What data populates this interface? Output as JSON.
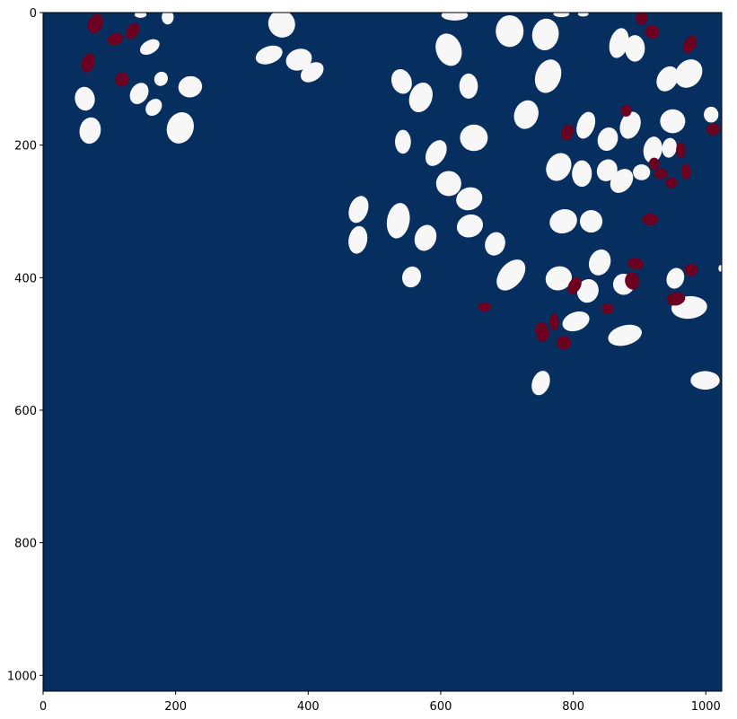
{
  "chart_data": {
    "type": "heatmap",
    "title": "",
    "xlabel": "",
    "ylabel": "",
    "xlim": [
      0,
      1024
    ],
    "ylim": [
      1024,
      0
    ],
    "x_ticks": [
      0,
      200,
      400,
      600,
      800,
      1000
    ],
    "y_ticks": [
      0,
      200,
      400,
      600,
      800,
      1000
    ],
    "x_tick_labels": [
      "0",
      "200",
      "400",
      "600",
      "800",
      "1000"
    ],
    "y_tick_labels": [
      "0",
      "200",
      "400",
      "600",
      "800",
      "1000"
    ],
    "grid": false,
    "legend": "none",
    "classes": [
      {
        "value": 0,
        "color": "#062e5f"
      },
      {
        "value": 1,
        "color": "#f7f7f7"
      },
      {
        "value": 2,
        "color": "#6b0020"
      }
    ],
    "regions": [
      {
        "class": 1,
        "cx": 147,
        "cy": 3,
        "rx": 9,
        "ry": 5,
        "angle": 0
      },
      {
        "class": 1,
        "cx": 188,
        "cy": 7,
        "rx": 9,
        "ry": 11,
        "angle": 0
      },
      {
        "class": 1,
        "cx": 360,
        "cy": 17,
        "rx": 20,
        "ry": 21,
        "angle": -30
      },
      {
        "class": 1,
        "cx": 621,
        "cy": 4,
        "rx": 20,
        "ry": 8,
        "angle": 0
      },
      {
        "class": 1,
        "cx": 782,
        "cy": 2,
        "rx": 12,
        "ry": 5,
        "angle": 0
      },
      {
        "class": 1,
        "cx": 815,
        "cy": 2,
        "rx": 8,
        "ry": 4,
        "angle": 0
      },
      {
        "class": 1,
        "cx": 161,
        "cy": 52,
        "rx": 16,
        "ry": 10,
        "angle": -30
      },
      {
        "class": 1,
        "cx": 341,
        "cy": 64,
        "rx": 21,
        "ry": 13,
        "angle": -20
      },
      {
        "class": 1,
        "cx": 386,
        "cy": 71,
        "rx": 20,
        "ry": 16,
        "angle": -20
      },
      {
        "class": 1,
        "cx": 406,
        "cy": 90,
        "rx": 19,
        "ry": 13,
        "angle": -35
      },
      {
        "class": 1,
        "cx": 612,
        "cy": 56,
        "rx": 19,
        "ry": 25,
        "angle": -20
      },
      {
        "class": 1,
        "cx": 704,
        "cy": 28,
        "rx": 21,
        "ry": 24,
        "angle": 0
      },
      {
        "class": 1,
        "cx": 758,
        "cy": 33,
        "rx": 20,
        "ry": 24,
        "angle": 10
      },
      {
        "class": 1,
        "cx": 869,
        "cy": 46,
        "rx": 14,
        "ry": 23,
        "angle": 15
      },
      {
        "class": 1,
        "cx": 893,
        "cy": 54,
        "rx": 15,
        "ry": 20,
        "angle": 0
      },
      {
        "class": 1,
        "cx": 63,
        "cy": 130,
        "rx": 15,
        "ry": 18,
        "angle": -10
      },
      {
        "class": 1,
        "cx": 145,
        "cy": 122,
        "rx": 13,
        "ry": 17,
        "angle": 30
      },
      {
        "class": 1,
        "cx": 167,
        "cy": 143,
        "rx": 11,
        "ry": 14,
        "angle": 40
      },
      {
        "class": 1,
        "cx": 178,
        "cy": 100,
        "rx": 10,
        "ry": 11,
        "angle": 30
      },
      {
        "class": 1,
        "cx": 222,
        "cy": 112,
        "rx": 18,
        "ry": 16,
        "angle": -10
      },
      {
        "class": 1,
        "cx": 71,
        "cy": 178,
        "rx": 16,
        "ry": 20,
        "angle": 10
      },
      {
        "class": 1,
        "cx": 207,
        "cy": 174,
        "rx": 20,
        "ry": 24,
        "angle": 20
      },
      {
        "class": 1,
        "cx": 541,
        "cy": 104,
        "rx": 15,
        "ry": 19,
        "angle": -20
      },
      {
        "class": 1,
        "cx": 570,
        "cy": 128,
        "rx": 17,
        "ry": 23,
        "angle": 20
      },
      {
        "class": 1,
        "cx": 642,
        "cy": 111,
        "rx": 14,
        "ry": 19,
        "angle": 0
      },
      {
        "class": 1,
        "cx": 762,
        "cy": 96,
        "rx": 19,
        "ry": 26,
        "angle": 20
      },
      {
        "class": 1,
        "cx": 942,
        "cy": 100,
        "rx": 15,
        "ry": 20,
        "angle": 30
      },
      {
        "class": 1,
        "cx": 974,
        "cy": 92,
        "rx": 19,
        "ry": 23,
        "angle": 40
      },
      {
        "class": 1,
        "cx": 729,
        "cy": 154,
        "rx": 18,
        "ry": 22,
        "angle": 20
      },
      {
        "class": 1,
        "cx": 819,
        "cy": 170,
        "rx": 13,
        "ry": 21,
        "angle": 20
      },
      {
        "class": 1,
        "cx": 886,
        "cy": 170,
        "rx": 15,
        "ry": 21,
        "angle": 20
      },
      {
        "class": 1,
        "cx": 950,
        "cy": 164,
        "rx": 19,
        "ry": 18,
        "angle": 0
      },
      {
        "class": 1,
        "cx": 1008,
        "cy": 154,
        "rx": 11,
        "ry": 12,
        "angle": 0
      },
      {
        "class": 1,
        "cx": 543,
        "cy": 195,
        "rx": 12,
        "ry": 18,
        "angle": 0
      },
      {
        "class": 1,
        "cx": 593,
        "cy": 212,
        "rx": 14,
        "ry": 21,
        "angle": 30
      },
      {
        "class": 1,
        "cx": 650,
        "cy": 189,
        "rx": 21,
        "ry": 20,
        "angle": 0
      },
      {
        "class": 1,
        "cx": 852,
        "cy": 191,
        "rx": 15,
        "ry": 18,
        "angle": 20
      },
      {
        "class": 1,
        "cx": 920,
        "cy": 207,
        "rx": 14,
        "ry": 20,
        "angle": 10
      },
      {
        "class": 1,
        "cx": 945,
        "cy": 204,
        "rx": 11,
        "ry": 15,
        "angle": 10
      },
      {
        "class": 1,
        "cx": 778,
        "cy": 233,
        "rx": 18,
        "ry": 22,
        "angle": 30
      },
      {
        "class": 1,
        "cx": 813,
        "cy": 243,
        "rx": 15,
        "ry": 20,
        "angle": 0
      },
      {
        "class": 1,
        "cx": 851,
        "cy": 238,
        "rx": 15,
        "ry": 17,
        "angle": 30
      },
      {
        "class": 1,
        "cx": 873,
        "cy": 254,
        "rx": 15,
        "ry": 20,
        "angle": 40
      },
      {
        "class": 1,
        "cx": 903,
        "cy": 241,
        "rx": 13,
        "ry": 12,
        "angle": 0
      },
      {
        "class": 1,
        "cx": 612,
        "cy": 258,
        "rx": 19,
        "ry": 19,
        "angle": 0
      },
      {
        "class": 1,
        "cx": 643,
        "cy": 281,
        "rx": 20,
        "ry": 17,
        "angle": -20
      },
      {
        "class": 1,
        "cx": 476,
        "cy": 297,
        "rx": 14,
        "ry": 21,
        "angle": 20
      },
      {
        "class": 1,
        "cx": 536,
        "cy": 314,
        "rx": 17,
        "ry": 27,
        "angle": 10
      },
      {
        "class": 1,
        "cx": 644,
        "cy": 322,
        "rx": 20,
        "ry": 17,
        "angle": -20
      },
      {
        "class": 1,
        "cx": 785,
        "cy": 315,
        "rx": 21,
        "ry": 18,
        "angle": -20
      },
      {
        "class": 1,
        "cx": 827,
        "cy": 315,
        "rx": 17,
        "ry": 17,
        "angle": 0
      },
      {
        "class": 1,
        "cx": 475,
        "cy": 343,
        "rx": 14,
        "ry": 21,
        "angle": 10
      },
      {
        "class": 1,
        "cx": 577,
        "cy": 340,
        "rx": 16,
        "ry": 20,
        "angle": 20
      },
      {
        "class": 1,
        "cx": 682,
        "cy": 349,
        "rx": 15,
        "ry": 18,
        "angle": 20
      },
      {
        "class": 1,
        "cx": 556,
        "cy": 399,
        "rx": 14,
        "ry": 16,
        "angle": 20
      },
      {
        "class": 1,
        "cx": 706,
        "cy": 396,
        "rx": 17,
        "ry": 27,
        "angle": 40
      },
      {
        "class": 1,
        "cx": 778,
        "cy": 401,
        "rx": 20,
        "ry": 18,
        "angle": -20
      },
      {
        "class": 1,
        "cx": 840,
        "cy": 377,
        "rx": 16,
        "ry": 20,
        "angle": 20
      },
      {
        "class": 1,
        "cx": 876,
        "cy": 410,
        "rx": 16,
        "ry": 16,
        "angle": 0
      },
      {
        "class": 1,
        "cx": 822,
        "cy": 420,
        "rx": 16,
        "ry": 18,
        "angle": 20
      },
      {
        "class": 1,
        "cx": 954,
        "cy": 401,
        "rx": 13,
        "ry": 16,
        "angle": 20
      },
      {
        "class": 1,
        "cx": 975,
        "cy": 445,
        "rx": 27,
        "ry": 17,
        "angle": -5
      },
      {
        "class": 1,
        "cx": 804,
        "cy": 466,
        "rx": 21,
        "ry": 14,
        "angle": -20
      },
      {
        "class": 1,
        "cx": 878,
        "cy": 487,
        "rx": 26,
        "ry": 15,
        "angle": -15
      },
      {
        "class": 1,
        "cx": 1022,
        "cy": 386,
        "rx": 3,
        "ry": 5,
        "angle": 0
      },
      {
        "class": 1,
        "cx": 751,
        "cy": 559,
        "rx": 13,
        "ry": 19,
        "angle": 20
      },
      {
        "class": 1,
        "cx": 999,
        "cy": 555,
        "rx": 22,
        "ry": 14,
        "angle": 0
      },
      {
        "class": 2,
        "cx": 79,
        "cy": 17,
        "rx": 11,
        "ry": 15,
        "angle": 20
      },
      {
        "class": 2,
        "cx": 109,
        "cy": 40,
        "rx": 12,
        "ry": 9,
        "angle": -20
      },
      {
        "class": 2,
        "cx": 135,
        "cy": 28,
        "rx": 9,
        "ry": 13,
        "angle": 30
      },
      {
        "class": 2,
        "cx": 68,
        "cy": 76,
        "rx": 10,
        "ry": 15,
        "angle": 20
      },
      {
        "class": 2,
        "cx": 119,
        "cy": 101,
        "rx": 10,
        "ry": 11,
        "angle": 20
      },
      {
        "class": 2,
        "cx": 903,
        "cy": 8,
        "rx": 9,
        "ry": 10,
        "angle": 0
      },
      {
        "class": 2,
        "cx": 919,
        "cy": 29,
        "rx": 11,
        "ry": 10,
        "angle": 20
      },
      {
        "class": 2,
        "cx": 976,
        "cy": 48,
        "rx": 9,
        "ry": 14,
        "angle": 30
      },
      {
        "class": 2,
        "cx": 880,
        "cy": 148,
        "rx": 8,
        "ry": 9,
        "angle": 0
      },
      {
        "class": 2,
        "cx": 791,
        "cy": 181,
        "rx": 9,
        "ry": 12,
        "angle": 20
      },
      {
        "class": 2,
        "cx": 1011,
        "cy": 176,
        "rx": 10,
        "ry": 9,
        "angle": -20
      },
      {
        "class": 2,
        "cx": 922,
        "cy": 228,
        "rx": 8,
        "ry": 9,
        "angle": 0
      },
      {
        "class": 2,
        "cx": 932,
        "cy": 243,
        "rx": 10,
        "ry": 8,
        "angle": 0
      },
      {
        "class": 2,
        "cx": 948,
        "cy": 257,
        "rx": 9,
        "ry": 8,
        "angle": 0
      },
      {
        "class": 2,
        "cx": 962,
        "cy": 208,
        "rx": 7,
        "ry": 12,
        "angle": 0
      },
      {
        "class": 2,
        "cx": 970,
        "cy": 240,
        "rx": 7,
        "ry": 12,
        "angle": 0
      },
      {
        "class": 2,
        "cx": 916,
        "cy": 312,
        "rx": 12,
        "ry": 9,
        "angle": 0
      },
      {
        "class": 2,
        "cx": 894,
        "cy": 379,
        "rx": 12,
        "ry": 9,
        "angle": 10
      },
      {
        "class": 2,
        "cx": 889,
        "cy": 405,
        "rx": 11,
        "ry": 13,
        "angle": -10
      },
      {
        "class": 2,
        "cx": 978,
        "cy": 388,
        "rx": 10,
        "ry": 9,
        "angle": 0
      },
      {
        "class": 2,
        "cx": 802,
        "cy": 412,
        "rx": 9,
        "ry": 14,
        "angle": 30
      },
      {
        "class": 2,
        "cx": 955,
        "cy": 432,
        "rx": 14,
        "ry": 10,
        "angle": -10
      },
      {
        "class": 2,
        "cx": 666,
        "cy": 444,
        "rx": 10,
        "ry": 7,
        "angle": 0
      },
      {
        "class": 2,
        "cx": 852,
        "cy": 447,
        "rx": 9,
        "ry": 8,
        "angle": 0
      },
      {
        "class": 2,
        "cx": 771,
        "cy": 467,
        "rx": 7,
        "ry": 13,
        "angle": 0
      },
      {
        "class": 2,
        "cx": 753,
        "cy": 482,
        "rx": 10,
        "ry": 15,
        "angle": -10
      },
      {
        "class": 2,
        "cx": 786,
        "cy": 498,
        "rx": 11,
        "ry": 10,
        "angle": 0
      }
    ]
  }
}
